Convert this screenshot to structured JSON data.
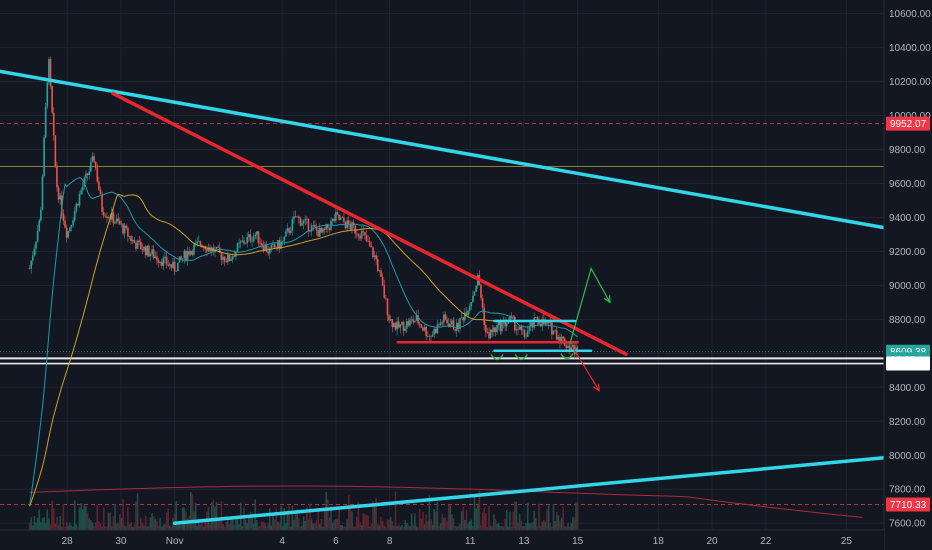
{
  "chart_data": {
    "type": "candlestick",
    "title": "",
    "xlabel": "",
    "ylabel": "",
    "ylim": [
      7560,
      10680
    ],
    "y_ticks": [
      "10600.00",
      "10400.00",
      "10200.00",
      "10000.00",
      "9800.00",
      "9600.00",
      "9400.00",
      "9200.00",
      "9000.00",
      "8800.00",
      "8600.00",
      "8400.00",
      "8200.00",
      "8000.00",
      "7800.00",
      "7600.00"
    ],
    "y_tick_values": [
      10600,
      10400,
      10200,
      10000,
      9800,
      9600,
      9400,
      9200,
      9000,
      8800,
      8600,
      8400,
      8200,
      8000,
      7800,
      7600
    ],
    "x_ticks": [
      "28",
      "30",
      "Nov",
      "4",
      "6",
      "8",
      "11",
      "13",
      "15",
      "18",
      "20",
      "22",
      "25"
    ],
    "x_tick_days": [
      1,
      3,
      5,
      9,
      11,
      13,
      16,
      18,
      20,
      23,
      25,
      27,
      30
    ],
    "xlim_days": [
      -1.5,
      31.4
    ],
    "price_path": [
      [
        -0.4,
        9100
      ],
      [
        0,
        9400
      ],
      [
        0.3,
        10350
      ],
      [
        0.6,
        9600
      ],
      [
        1.0,
        9300
      ],
      [
        1.5,
        9550
      ],
      [
        2,
        9750
      ],
      [
        2.3,
        9450
      ],
      [
        3,
        9350
      ],
      [
        3.5,
        9250
      ],
      [
        4,
        9200
      ],
      [
        4.5,
        9150
      ],
      [
        5,
        9100
      ],
      [
        5.5,
        9200
      ],
      [
        6,
        9250
      ],
      [
        6.5,
        9200
      ],
      [
        7,
        9150
      ],
      [
        7.5,
        9250
      ],
      [
        8,
        9300
      ],
      [
        8.5,
        9200
      ],
      [
        9,
        9250
      ],
      [
        9.5,
        9400
      ],
      [
        10,
        9350
      ],
      [
        10.5,
        9300
      ],
      [
        11,
        9400
      ],
      [
        11.5,
        9350
      ],
      [
        12,
        9300
      ],
      [
        12.5,
        9150
      ],
      [
        13,
        8800
      ],
      [
        13.3,
        8750
      ],
      [
        14,
        8800
      ],
      [
        14.5,
        8700
      ],
      [
        15,
        8800
      ],
      [
        15.5,
        8750
      ],
      [
        16,
        8900
      ],
      [
        16.3,
        9050
      ],
      [
        16.6,
        8700
      ],
      [
        17,
        8750
      ],
      [
        17.5,
        8800
      ],
      [
        18,
        8700
      ],
      [
        18.5,
        8800
      ],
      [
        19,
        8750
      ],
      [
        19.6,
        8650
      ],
      [
        20,
        8610
      ]
    ],
    "annotations": {
      "price_labels": [
        {
          "label": "9952.07",
          "value": 9952.07,
          "color": "#f23645"
        },
        {
          "label": "8609.38",
          "value": 8609.38,
          "color": "#26a69a"
        },
        {
          "label": "34:20",
          "value": 8565,
          "color": "#26a69a"
        },
        {
          "label": "8540.06",
          "value": 8540.06,
          "color": "#ffffff"
        },
        {
          "label": "7710.33",
          "value": 7710.33,
          "color": "#f23645"
        }
      ],
      "dashed_levels": [
        9952.07,
        7710.33
      ],
      "horizontal_levels": [
        9700,
        8570,
        8540.06
      ],
      "trendlines": [
        {
          "name": "upper cyan",
          "color": "#33d6e8",
          "from": [
            -1.5,
            10260
          ],
          "to": [
            31.4,
            9340
          ]
        },
        {
          "name": "red descending",
          "color": "#e8262d",
          "from": [
            2.7,
            10130
          ],
          "to": [
            21.8,
            8595
          ]
        },
        {
          "name": "lower cyan",
          "color": "#33d6e8",
          "from": [
            5,
            7600
          ],
          "to": [
            31.4,
            7985
          ]
        },
        {
          "name": "red support",
          "color": "#e8262d",
          "from": [
            13.3,
            8665
          ],
          "to": [
            20.0,
            8665
          ]
        },
        {
          "name": "cyan box top",
          "color": "#33d6e8",
          "from": [
            16.9,
            8790
          ],
          "to": [
            19.9,
            8790
          ]
        },
        {
          "name": "cyan box bottom",
          "color": "#33d6e8",
          "from": [
            16.9,
            8615
          ],
          "to": [
            20.5,
            8615
          ]
        }
      ],
      "scenario_arrows": [
        {
          "color": "#2dbf4e",
          "path": [
            [
              19.7,
              8650
            ],
            [
              20.5,
              9100
            ],
            [
              21.2,
              8900
            ]
          ]
        },
        {
          "color": "#e8262d",
          "path": [
            [
              19.8,
              8640
            ],
            [
              20.8,
              8380
            ]
          ]
        }
      ]
    }
  }
}
